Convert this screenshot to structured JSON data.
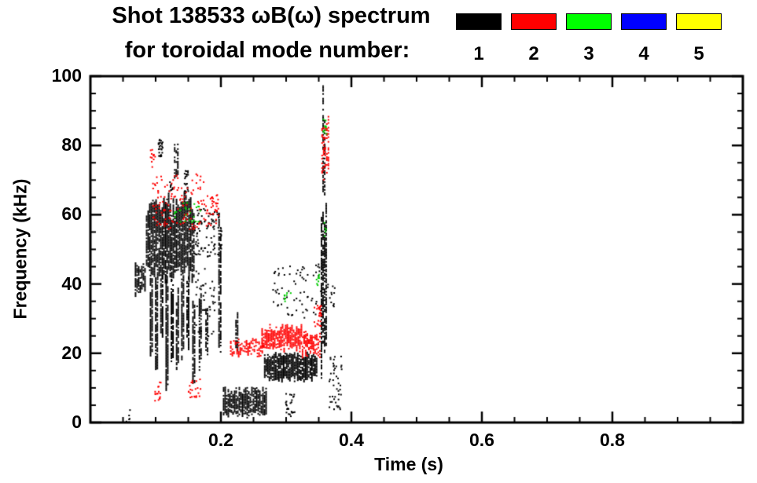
{
  "header": {
    "title_line1": "Shot 138533 ωB(ω) spectrum",
    "title_line2": "for toroidal mode number:"
  },
  "legend": {
    "modes": [
      {
        "label": "1",
        "color": "#000000"
      },
      {
        "label": "2",
        "color": "#ff0000"
      },
      {
        "label": "3",
        "color": "#00ff00"
      },
      {
        "label": "4",
        "color": "#0000ff"
      },
      {
        "label": "5",
        "color": "#ffff00"
      }
    ]
  },
  "chart_data": {
    "type": "scatter",
    "title": "Shot 138533 ωB(ω) spectrum for toroidal mode number: 1 2 3 4 5",
    "xlabel": "Time (s)",
    "ylabel": "Frequency (kHz)",
    "xlim": [
      0.0,
      1.0
    ],
    "ylim": [
      0,
      100
    ],
    "xticks": {
      "major": [
        0.2,
        0.4,
        0.6,
        0.8
      ],
      "labels": [
        "0.2",
        "0.4",
        "0.6",
        "0.8"
      ],
      "minor_step": 0.05
    },
    "yticks": {
      "major": [
        0,
        20,
        40,
        60,
        80,
        100
      ],
      "labels": [
        "0",
        "20",
        "40",
        "60",
        "80",
        "100"
      ],
      "minor_step": 5
    },
    "axis_color": "#000000",
    "background": "#ffffff",
    "legend_position": "top-right",
    "grid": false,
    "series": [
      {
        "name": "toroidal mode n=1",
        "mode": 1,
        "color": "#000000",
        "clusters": [
          {
            "t": [
              0.068,
              0.083
            ],
            "f": [
              37,
              46
            ],
            "style": "fill",
            "density": 0.75
          },
          {
            "t": [
              0.085,
              0.158
            ],
            "f": [
              41,
              65
            ],
            "style": "fill",
            "density": 0.85
          },
          {
            "t": [
              0.091,
              0.0945
            ],
            "f": [
              18,
              44
            ],
            "style": "fill",
            "density": 0.8
          },
          {
            "t": [
              0.099,
              0.1025
            ],
            "f": [
              13,
              44
            ],
            "style": "fill",
            "density": 0.8
          },
          {
            "t": [
              0.107,
              0.1105
            ],
            "f": [
              22,
              44
            ],
            "style": "fill",
            "density": 0.8
          },
          {
            "t": [
              0.115,
              0.1185
            ],
            "f": [
              10,
              44
            ],
            "style": "fill",
            "density": 0.8
          },
          {
            "t": [
              0.123,
              0.1265
            ],
            "f": [
              18,
              44
            ],
            "style": "fill",
            "density": 0.8
          },
          {
            "t": [
              0.131,
              0.1345
            ],
            "f": [
              14,
              42
            ],
            "style": "fill",
            "density": 0.8
          },
          {
            "t": [
              0.139,
              0.143
            ],
            "f": [
              16,
              42
            ],
            "style": "fill",
            "density": 0.8
          },
          {
            "t": [
              0.147,
              0.151
            ],
            "f": [
              20,
              42
            ],
            "style": "fill",
            "density": 0.8
          },
          {
            "t": [
              0.156,
              0.16
            ],
            "f": [
              11,
              40
            ],
            "style": "fill",
            "density": 0.7
          },
          {
            "t": [
              0.166,
              0.17
            ],
            "f": [
              15,
              38
            ],
            "style": "fill",
            "density": 0.7
          },
          {
            "t": [
              0.176,
              0.18
            ],
            "f": [
              19,
              36
            ],
            "style": "fill",
            "density": 0.7
          },
          {
            "t": [
              0.103,
              0.11
            ],
            "f": [
              77,
              82
            ],
            "style": "scatter",
            "count": 28
          },
          {
            "t": [
              0.128,
              0.133
            ],
            "f": [
              71,
              80
            ],
            "style": "fill",
            "density": 0.6
          },
          {
            "t": [
              0.143,
              0.149
            ],
            "f": [
              66,
              73
            ],
            "style": "scatter",
            "count": 22
          },
          {
            "t": [
              0.119,
              0.125
            ],
            "f": [
              67,
              71
            ],
            "style": "scatter",
            "count": 10
          },
          {
            "t": [
              0.158,
              0.2
            ],
            "f": [
              48,
              62
            ],
            "style": "scatter",
            "count": 90
          },
          {
            "t": [
              0.16,
              0.19
            ],
            "f": [
              25,
              45
            ],
            "style": "scatter",
            "count": 40
          },
          {
            "t": [
              0.196,
              0.2
            ],
            "f": [
              18,
              62
            ],
            "style": "fill",
            "density": 0.7
          },
          {
            "t": [
              0.222,
              0.226
            ],
            "f": [
              20,
              31
            ],
            "style": "fill",
            "density": 0.7
          },
          {
            "t": [
              0.203,
              0.27
            ],
            "f": [
              2,
              10
            ],
            "style": "fill",
            "density": 0.8
          },
          {
            "t": [
              0.266,
              0.347
            ],
            "f": [
              12,
              20
            ],
            "style": "fill",
            "density": 0.85
          },
          {
            "t": [
              0.278,
              0.352
            ],
            "f": [
              30,
              46
            ],
            "style": "scatter",
            "count": 70
          },
          {
            "t": [
              0.353,
              0.362
            ],
            "f": [
              14,
              60
            ],
            "style": "fill",
            "density": 0.75
          },
          {
            "t": [
              0.3555,
              0.3595
            ],
            "f": [
              60,
              95
            ],
            "style": "fill",
            "density": 0.55
          },
          {
            "t": [
              0.365,
              0.384
            ],
            "f": [
              4,
              20
            ],
            "style": "scatter",
            "count": 45
          },
          {
            "t": [
              0.298,
              0.312
            ],
            "f": [
              2,
              9
            ],
            "style": "scatter",
            "count": 25
          },
          {
            "t": [
              0.052,
              0.06
            ],
            "f": [
              0,
              4
            ],
            "style": "scatter",
            "count": 8
          },
          {
            "t": [
              0.36,
              0.374
            ],
            "f": [
              33,
              41
            ],
            "style": "scatter",
            "count": 12
          }
        ]
      },
      {
        "name": "toroidal mode n=2",
        "mode": 2,
        "color": "#ff0000",
        "clusters": [
          {
            "t": [
              0.094,
              0.178
            ],
            "f": [
              56,
              72
            ],
            "style": "scatter",
            "count": 130
          },
          {
            "t": [
              0.091,
              0.099
            ],
            "f": [
              74,
              79
            ],
            "style": "scatter",
            "count": 12
          },
          {
            "t": [
              0.097,
              0.108
            ],
            "f": [
              6,
              12
            ],
            "style": "scatter",
            "count": 16
          },
          {
            "t": [
              0.149,
              0.168
            ],
            "f": [
              7,
              13
            ],
            "style": "scatter",
            "count": 22
          },
          {
            "t": [
              0.214,
              0.266
            ],
            "f": [
              19,
              24
            ],
            "style": "fill",
            "density": 0.45
          },
          {
            "t": [
              0.262,
              0.324
            ],
            "f": [
              21,
              28
            ],
            "style": "fill",
            "density": 0.8
          },
          {
            "t": [
              0.324,
              0.352
            ],
            "f": [
              19,
              26
            ],
            "style": "fill",
            "density": 0.5
          },
          {
            "t": [
              0.354,
              0.364
            ],
            "f": [
              70,
              88
            ],
            "style": "fill",
            "density": 0.45
          },
          {
            "t": [
              0.342,
              0.353
            ],
            "f": [
              28,
              34
            ],
            "style": "scatter",
            "count": 26
          },
          {
            "t": [
              0.175,
              0.195
            ],
            "f": [
              57,
              66
            ],
            "style": "scatter",
            "count": 35
          }
        ]
      },
      {
        "name": "toroidal mode n=3",
        "mode": 3,
        "color": "#00cc00",
        "clusters": [
          {
            "t": [
              0.127,
              0.168
            ],
            "f": [
              58,
              64
            ],
            "style": "scatter",
            "count": 26
          },
          {
            "t": [
              0.296,
              0.306
            ],
            "f": [
              35,
              39
            ],
            "style": "scatter",
            "count": 8
          },
          {
            "t": [
              0.345,
              0.352
            ],
            "f": [
              39,
              43
            ],
            "style": "scatter",
            "count": 8
          },
          {
            "t": [
              0.3555,
              0.361
            ],
            "f": [
              83,
              88
            ],
            "style": "scatter",
            "count": 10
          },
          {
            "t": [
              0.357,
              0.3605
            ],
            "f": [
              54,
              58
            ],
            "style": "scatter",
            "count": 5
          }
        ]
      },
      {
        "name": "toroidal mode n=4",
        "mode": 4,
        "color": "#0000ff",
        "clusters": []
      },
      {
        "name": "toroidal mode n=5",
        "mode": 5,
        "color": "#ffff00",
        "clusters": []
      }
    ]
  }
}
